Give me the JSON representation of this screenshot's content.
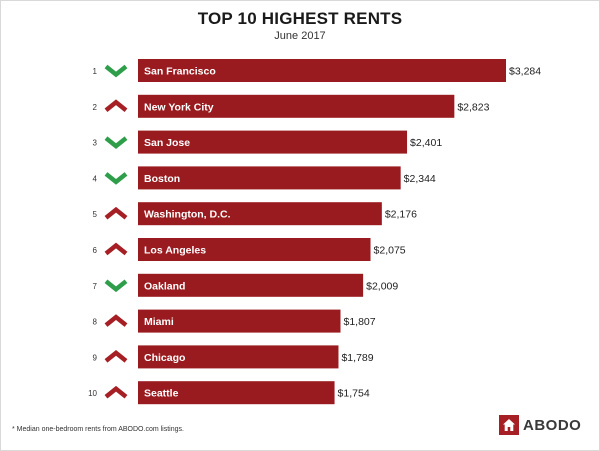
{
  "chart_data": {
    "type": "bar",
    "title": "TOP 10 HIGHEST RENTS",
    "subtitle": "June 2017",
    "ranks": [
      "1",
      "2",
      "3",
      "4",
      "5",
      "6",
      "7",
      "8",
      "9",
      "10"
    ],
    "categories": [
      "San Francisco",
      "New York City",
      "San Jose",
      "Boston",
      "Washington, D.C.",
      "Los Angeles",
      "Oakland",
      "Miami",
      "Chicago",
      "Seattle"
    ],
    "values": [
      3284,
      2823,
      2401,
      2344,
      2176,
      2075,
      2009,
      1807,
      1789,
      1754
    ],
    "value_labels": [
      "$3,284",
      "$2,823",
      "$2,401",
      "$2,344",
      "$2,176",
      "$2,075",
      "$2,009",
      "$1,807",
      "$1,789",
      "$1,754"
    ],
    "trends": [
      "down",
      "up",
      "down",
      "down",
      "up",
      "up",
      "down",
      "up",
      "up",
      "up"
    ],
    "colors": {
      "bar": "#991b1f",
      "up_arrow": "#a51f24",
      "down_arrow": "#2e9e4a"
    }
  },
  "footnote": "* Median one-bedroom rents from ABODO.com listings.",
  "logo": {
    "text": "ABODO",
    "color": "#a51f24"
  }
}
